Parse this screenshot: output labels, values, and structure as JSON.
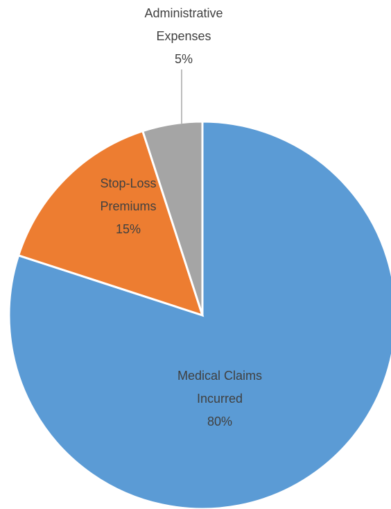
{
  "chart_data": {
    "type": "pie",
    "categories": [
      "Medical Claims Incurred",
      "Stop-Loss Premiums",
      "Administrative Expenses"
    ],
    "values": [
      80,
      15,
      5
    ],
    "value_labels": [
      "80%",
      "15%",
      "5%"
    ],
    "colors": [
      "#5b9bd5",
      "#ed7d31",
      "#a5a5a5"
    ]
  }
}
